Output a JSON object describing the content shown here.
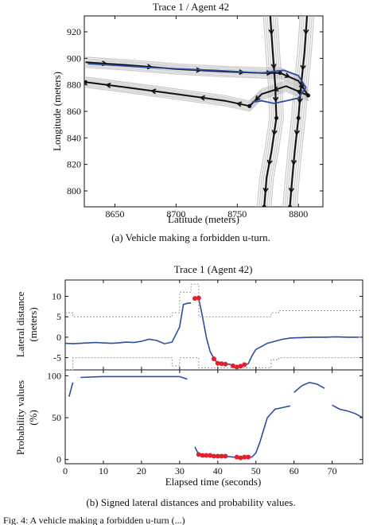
{
  "top": {
    "title": "Trace 1 / Agent 42",
    "xlabel": "Latitude (meters)",
    "ylabel": "Longitude (meters)",
    "caption": "(a) Vehicle making a forbidden u-turn."
  },
  "bottom": {
    "title": "Trace 1 (Agent 42)",
    "ylabel_upper_1": "Lateral distance",
    "ylabel_upper_2": "(meters)",
    "ylabel_lower_1": "Probability values",
    "ylabel_lower_2": "(%)",
    "xlabel": "Elapsed time (seconds)",
    "caption": "(b) Signed lateral distances and probability values."
  },
  "footer_fragment": "Fig. 4: A vehicle making a forbidden u-turn (...)",
  "colors": {
    "path": "#111111",
    "trace": "#bbbbbb",
    "estimate": "#2b4ea2",
    "violation": "#e0202a",
    "bound": "#999999"
  },
  "chart_data": [
    {
      "type": "line",
      "title": "Trace 1 / Agent 42",
      "xlabel": "Latitude (meters)",
      "ylabel": "Longitude (meters)",
      "xlim": [
        8625,
        8820
      ],
      "ylim": [
        788,
        932
      ],
      "xticks": [
        8650,
        8700,
        8750,
        8800
      ],
      "yticks": [
        800,
        820,
        840,
        860,
        880,
        900,
        920
      ],
      "grid": false,
      "series": [
        {
          "role": "lane-path",
          "x": [
            8626,
            8660,
            8700,
            8740,
            8770,
            8785
          ],
          "y": [
            897,
            895,
            892,
            890,
            889,
            889
          ]
        },
        {
          "role": "lane-path",
          "x": [
            8785,
            8800,
            8808
          ],
          "y": [
            889,
            883,
            872
          ]
        },
        {
          "role": "lane-path",
          "x": [
            8808,
            8790,
            8770,
            8760
          ],
          "y": [
            872,
            879,
            873,
            864
          ]
        },
        {
          "role": "lane-path",
          "x": [
            8760,
            8740,
            8700,
            8660,
            8626
          ],
          "y": [
            864,
            868,
            873,
            878,
            882
          ]
        },
        {
          "role": "lane-path",
          "x": [
            8777,
            8779,
            8781,
            8782
          ],
          "y": [
            932,
            905,
            880,
            855
          ]
        },
        {
          "role": "lane-path",
          "x": [
            8782,
            8778,
            8774,
            8772
          ],
          "y": [
            855,
            830,
            810,
            788
          ]
        },
        {
          "role": "lane-path",
          "x": [
            8807,
            8805,
            8802,
            8800
          ],
          "y": [
            932,
            905,
            878,
            855
          ]
        },
        {
          "role": "lane-path",
          "x": [
            8800,
            8797,
            8795,
            8793
          ],
          "y": [
            855,
            830,
            810,
            788
          ]
        },
        {
          "role": "estimated-path",
          "x": [
            8628,
            8680,
            8730,
            8770,
            8788
          ],
          "y": [
            896,
            893,
            891,
            889,
            891
          ]
        },
        {
          "role": "estimated-path",
          "x": [
            8788,
            8800,
            8806,
            8800,
            8790
          ],
          "y": [
            891,
            887,
            878,
            870,
            868
          ]
        },
        {
          "role": "estimated-path",
          "x": [
            8790,
            8780,
            8770,
            8762
          ],
          "y": [
            868,
            866,
            868,
            867
          ]
        }
      ]
    },
    {
      "type": "line",
      "title": "Trace 1 (Agent 42)",
      "xlabel": "",
      "ylabel": "Lateral distance (meters)",
      "xlim": [
        0,
        78
      ],
      "ylim": [
        -8,
        14
      ],
      "yticks": [
        -5,
        0,
        5,
        10
      ],
      "grid": false,
      "series": [
        {
          "role": "signed-distance",
          "x": [
            0,
            2,
            4,
            6,
            8,
            10,
            12,
            14,
            16,
            18,
            20,
            22,
            24,
            26,
            28,
            30,
            31,
            32,
            33
          ],
          "y": [
            -1.5,
            -1.6,
            -1.5,
            -1.4,
            -1.3,
            -1.4,
            -1.5,
            -1.4,
            -1.2,
            -1.3,
            -1.0,
            -0.5,
            -0.8,
            -1.6,
            -1.2,
            2.5,
            8.0,
            8.3,
            8.4
          ]
        },
        {
          "role": "signed-distance",
          "x": [
            35,
            36,
            37,
            38,
            39,
            40,
            41,
            42,
            43,
            44,
            45,
            46,
            47,
            48,
            49,
            50,
            51,
            52,
            53,
            55,
            57,
            59,
            62,
            65,
            68,
            71,
            74,
            77
          ],
          "y": [
            9.5,
            5.0,
            0.0,
            -3.5,
            -5.2,
            -6.4,
            -6.5,
            -6.6,
            -6.6,
            -7.0,
            -7.3,
            -7.1,
            -6.7,
            -6.5,
            -4.5,
            -3.0,
            -2.5,
            -2.0,
            -1.5,
            -1.0,
            -0.5,
            -0.2,
            -0.1,
            0.0,
            0.0,
            0.1,
            0.0,
            0.0
          ]
        },
        {
          "role": "upper-bound",
          "x": [
            0,
            2,
            2,
            28,
            28,
            30,
            30,
            33,
            33,
            35,
            35,
            54,
            54,
            56,
            56,
            78
          ],
          "y": [
            6,
            6,
            5,
            5,
            6,
            6,
            11,
            11,
            13,
            13,
            5,
            5,
            6,
            6,
            6.5,
            6.5
          ]
        },
        {
          "role": "lower-bound",
          "x": [
            0,
            2,
            2,
            28,
            28,
            30,
            30,
            35,
            35,
            54,
            54,
            56,
            56,
            78
          ],
          "y": [
            -8,
            -8,
            -5,
            -5,
            -7,
            -7,
            -5,
            -5,
            -7.5,
            -7.5,
            -5.5,
            -5.5,
            -5,
            -5
          ]
        },
        {
          "role": "violation-points",
          "x": [
            34,
            35,
            39,
            40,
            41,
            42,
            44,
            45,
            46,
            47
          ],
          "y": [
            9.5,
            9.6,
            -5.3,
            -6.4,
            -6.5,
            -6.6,
            -7.0,
            -7.3,
            -7.1,
            -6.7
          ]
        }
      ]
    },
    {
      "type": "line",
      "xlabel": "Elapsed time (seconds)",
      "ylabel": "Probability values (%)",
      "xlim": [
        0,
        78
      ],
      "ylim": [
        -5,
        107
      ],
      "xticks": [
        0,
        10,
        20,
        30,
        40,
        50,
        60,
        70
      ],
      "yticks": [
        0,
        50,
        100
      ],
      "grid": false,
      "series": [
        {
          "role": "probability",
          "x": [
            1,
            2
          ],
          "y": [
            75,
            92
          ]
        },
        {
          "role": "probability",
          "x": [
            4,
            10,
            20,
            28,
            30,
            32
          ],
          "y": [
            98,
            99,
            99,
            99,
            99,
            96
          ]
        },
        {
          "role": "probability",
          "x": [
            34,
            35,
            36,
            38,
            40,
            42,
            44,
            46,
            48,
            49,
            50,
            51,
            52,
            53,
            55,
            57,
            59
          ],
          "y": [
            15,
            6,
            5,
            5,
            4,
            4,
            3,
            2,
            3,
            3,
            8,
            20,
            35,
            50,
            60,
            62,
            64
          ]
        },
        {
          "role": "probability",
          "x": [
            60,
            62,
            64,
            66,
            68
          ],
          "y": [
            80,
            88,
            92,
            90,
            85
          ]
        },
        {
          "role": "probability",
          "x": [
            70,
            72,
            74,
            76,
            78
          ],
          "y": [
            65,
            60,
            58,
            55,
            50
          ]
        },
        {
          "role": "violation-points",
          "x": [
            35,
            36,
            37,
            38,
            39,
            40,
            41,
            42,
            45,
            46,
            47,
            48
          ],
          "y": [
            6,
            5,
            5,
            5,
            4,
            4,
            4,
            4,
            3,
            2,
            3,
            3
          ]
        }
      ]
    }
  ]
}
